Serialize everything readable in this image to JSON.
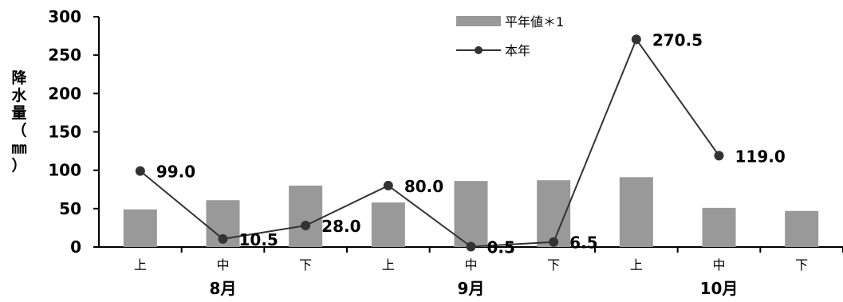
{
  "chart_data": {
    "type": "bar",
    "ylabel_chars": [
      "降",
      "水",
      "量",
      "（",
      "㎜",
      "）"
    ],
    "ylim": [
      0,
      300
    ],
    "yticks": [
      "0",
      "50",
      "100",
      "150",
      "200",
      "250",
      "300"
    ],
    "categories": [
      "上",
      "中",
      "下",
      "上",
      "中",
      "下",
      "上",
      "中",
      "下"
    ],
    "groups": [
      {
        "label": "8月"
      },
      {
        "label": "9月"
      },
      {
        "label": "10月"
      }
    ],
    "series": [
      {
        "name": "平年値＊1",
        "kind": "bar",
        "color": "#999999",
        "values": [
          49,
          61,
          80,
          58,
          86,
          87,
          91,
          51,
          47
        ]
      },
      {
        "name": "本年",
        "kind": "line",
        "color": "#333333",
        "values": [
          99.0,
          10.5,
          28.0,
          80.0,
          0.5,
          6.5,
          270.5,
          119.0,
          null
        ],
        "labels": [
          "99.0",
          "10.5",
          "28.0",
          "80.0",
          "0.5",
          "6.5",
          "270.5",
          "119.0",
          null
        ]
      }
    ],
    "legend_position": "top-center"
  }
}
